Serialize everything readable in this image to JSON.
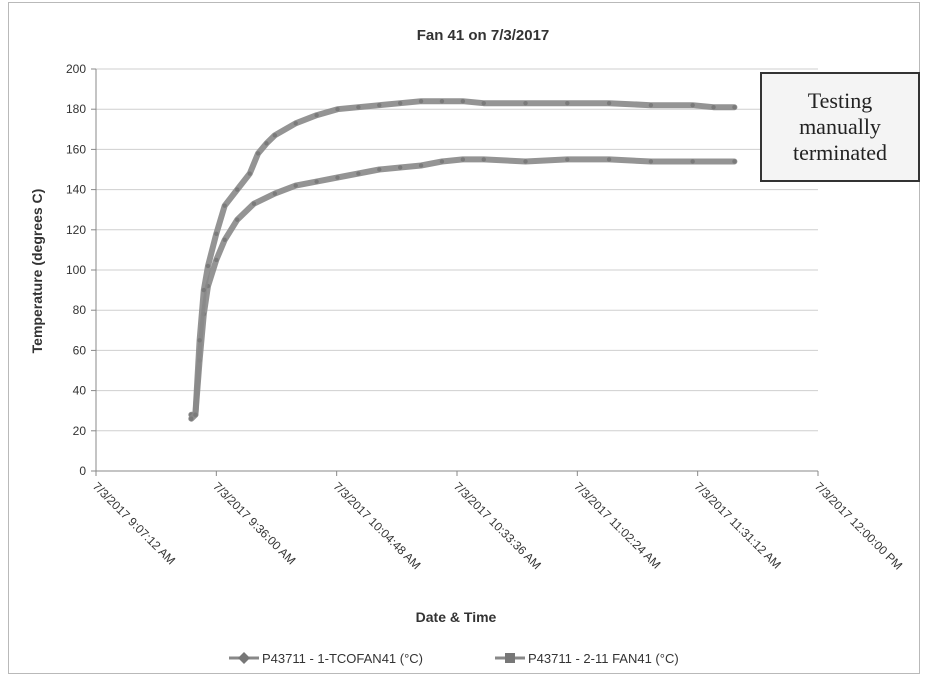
{
  "chart_data": {
    "type": "line",
    "title": "Fan 41 on 7/3/2017",
    "xlabel": "Date & Time",
    "ylabel": "Temperature (degrees C)",
    "ylim": [
      0,
      200
    ],
    "yticks": [
      0,
      20,
      40,
      60,
      80,
      100,
      120,
      140,
      160,
      180,
      200
    ],
    "xlim": [
      "7/3/2017 9:07:12 AM",
      "7/3/2017 12:00:00 PM"
    ],
    "xtick_labels": [
      "7/3/2017 9:07:12 AM",
      "7/3/2017 9:36:00 AM",
      "7/3/2017 10:04:48 AM",
      "7/3/2017 10:33:36 AM",
      "7/3/2017 11:02:24 AM",
      "7/3/2017 11:31:12 AM",
      "7/3/2017 12:00:00 PM"
    ],
    "grid": true,
    "legend_position": "bottom",
    "annotation": "Testing manually terminated",
    "series": [
      {
        "name": "P43711 - 1-TCOFAN41 (°C)",
        "color": "#888888",
        "marker": "diamond",
        "x": [
          "7/3/2017 9:30:00 AM",
          "7/3/2017 9:31:00 AM",
          "7/3/2017 9:32:00 AM",
          "7/3/2017 9:33:00 AM",
          "7/3/2017 9:34:00 AM",
          "7/3/2017 9:36:00 AM",
          "7/3/2017 9:38:00 AM",
          "7/3/2017 9:41:00 AM",
          "7/3/2017 9:45:00 AM",
          "7/3/2017 9:50:00 AM",
          "7/3/2017 9:55:00 AM",
          "7/3/2017 10:00:00 AM",
          "7/3/2017 10:05:00 AM",
          "7/3/2017 10:10:00 AM",
          "7/3/2017 10:15:00 AM",
          "7/3/2017 10:20:00 AM",
          "7/3/2017 10:25:00 AM",
          "7/3/2017 10:30:00 AM",
          "7/3/2017 10:35:00 AM",
          "7/3/2017 10:40:00 AM",
          "7/3/2017 10:50:00 AM",
          "7/3/2017 11:00:00 AM",
          "7/3/2017 11:10:00 AM",
          "7/3/2017 11:20:00 AM",
          "7/3/2017 11:30:00 AM",
          "7/3/2017 11:40:00 AM"
        ],
        "values": [
          28,
          28,
          55,
          78,
          92,
          105,
          115,
          125,
          133,
          138,
          142,
          144,
          146,
          148,
          150,
          151,
          152,
          154,
          155,
          155,
          154,
          155,
          155,
          154,
          154,
          154
        ]
      },
      {
        "name": "P43711 - 2-11 FAN41 (°C)",
        "color": "#888888",
        "marker": "square",
        "x": [
          "7/3/2017 9:30:00 AM",
          "7/3/2017 9:31:00 AM",
          "7/3/2017 9:32:00 AM",
          "7/3/2017 9:33:00 AM",
          "7/3/2017 9:34:00 AM",
          "7/3/2017 9:36:00 AM",
          "7/3/2017 9:38:00 AM",
          "7/3/2017 9:41:00 AM",
          "7/3/2017 9:44:00 AM",
          "7/3/2017 9:46:00 AM",
          "7/3/2017 9:48:00 AM",
          "7/3/2017 9:50:00 AM",
          "7/3/2017 9:55:00 AM",
          "7/3/2017 10:00:00 AM",
          "7/3/2017 10:05:00 AM",
          "7/3/2017 10:10:00 AM",
          "7/3/2017 10:15:00 AM",
          "7/3/2017 10:20:00 AM",
          "7/3/2017 10:25:00 AM",
          "7/3/2017 10:30:00 AM",
          "7/3/2017 10:35:00 AM",
          "7/3/2017 10:40:00 AM",
          "7/3/2017 10:50:00 AM",
          "7/3/2017 11:00:00 AM",
          "7/3/2017 11:10:00 AM",
          "7/3/2017 11:20:00 AM",
          "7/3/2017 11:30:00 AM",
          "7/3/2017 11:35:00 AM",
          "7/3/2017 11:40:00 AM"
        ],
        "values": [
          26,
          28,
          65,
          90,
          102,
          118,
          132,
          140,
          148,
          158,
          163,
          167,
          173,
          177,
          180,
          181,
          182,
          183,
          184,
          184,
          184,
          183,
          183,
          183,
          183,
          182,
          182,
          181,
          181
        ]
      }
    ]
  }
}
